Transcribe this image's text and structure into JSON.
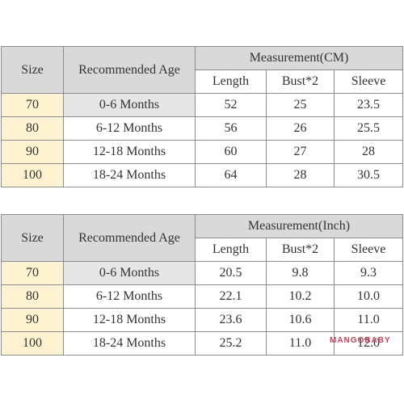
{
  "tables": [
    {
      "headers": {
        "size": "Size",
        "age": "Recommended Age",
        "group": "Measurement(CM)",
        "length": "Length",
        "bust": "Bust*2",
        "sleeve": "Sleeve"
      },
      "rows": [
        {
          "size": "70",
          "age": "0-6 Months",
          "length": "52",
          "bust": "25",
          "sleeve": "23.5"
        },
        {
          "size": "80",
          "age": "6-12 Months",
          "length": "56",
          "bust": "26",
          "sleeve": "25.5"
        },
        {
          "size": "90",
          "age": "12-18 Months",
          "length": "60",
          "bust": "27",
          "sleeve": "28"
        },
        {
          "size": "100",
          "age": "18-24 Months",
          "length": "64",
          "bust": "28",
          "sleeve": "30.5"
        }
      ]
    },
    {
      "headers": {
        "size": "Size",
        "age": "Recommended Age",
        "group": "Measurement(Inch)",
        "length": "Length",
        "bust": "Bust*2",
        "sleeve": "Sleeve"
      },
      "rows": [
        {
          "size": "70",
          "age": "0-6 Months",
          "length": "20.5",
          "bust": "9.8",
          "sleeve": "9.3"
        },
        {
          "size": "80",
          "age": "6-12 Months",
          "length": "22.1",
          "bust": "10.2",
          "sleeve": "10.0"
        },
        {
          "size": "90",
          "age": "12-18 Months",
          "length": "23.6",
          "bust": "10.6",
          "sleeve": "11.0"
        },
        {
          "size": "100",
          "age": "18-24 Months",
          "length": "25.2",
          "bust": "11.0",
          "sleeve": "12.0"
        }
      ]
    }
  ],
  "watermark": "MANGOBABY",
  "colors": {
    "header": "#d9d9d9",
    "size_cell": "#fdf3d0",
    "watermark": "#d0405a"
  }
}
